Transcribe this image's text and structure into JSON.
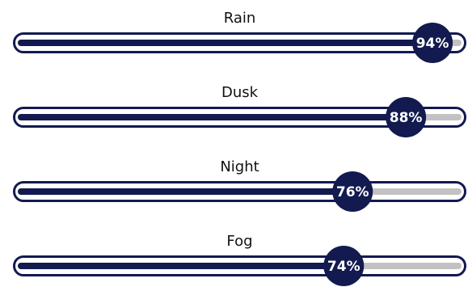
{
  "chart_data": {
    "type": "bar",
    "orientation": "horizontal",
    "style": "progress-bars",
    "categories": [
      "Rain",
      "Dusk",
      "Night",
      "Fog"
    ],
    "values": [
      94,
      88,
      76,
      74
    ],
    "value_labels": [
      "94%",
      "88%",
      "76%",
      "74%"
    ],
    "unit": "%",
    "xlim": [
      0,
      100
    ],
    "grid": false,
    "legend": "none"
  },
  "colors": {
    "fill": "#121a4f",
    "track": "#c2c2c2",
    "outline": "#121a4f",
    "bubble": "#121a4f",
    "bubble_text": "#ffffff",
    "label": "#111111"
  }
}
